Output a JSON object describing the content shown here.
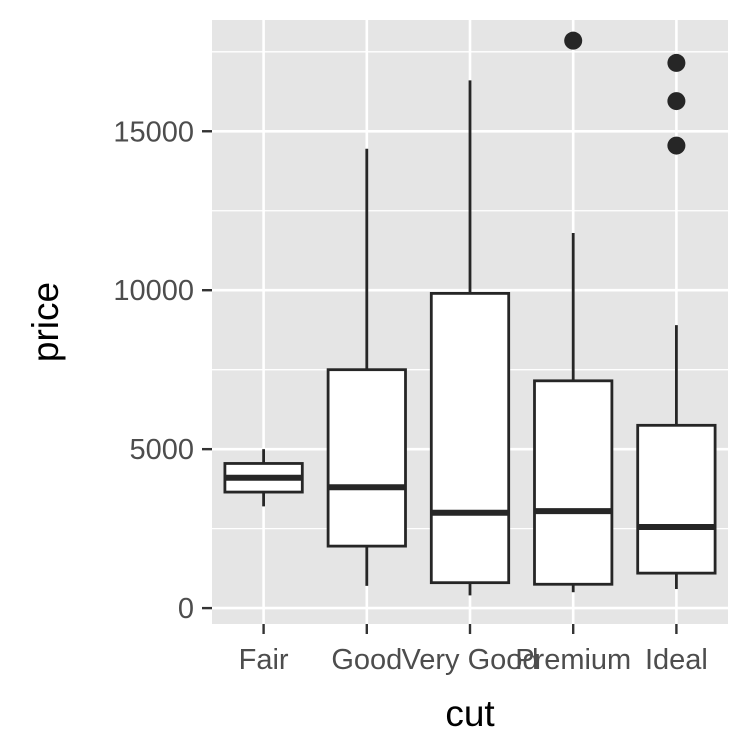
{
  "chart_data": {
    "type": "boxplot",
    "xlabel": "cut",
    "ylabel": "price",
    "ylim": [
      -500,
      18500
    ],
    "yticks": [
      0,
      5000,
      10000,
      15000
    ],
    "ytick_labels": [
      "0",
      "5000",
      "10000",
      "15000"
    ],
    "categories": [
      "Fair",
      "Good",
      "Very Good",
      "Premium",
      "Ideal"
    ],
    "boxes": [
      {
        "category": "Fair",
        "lower_whisker": 3200,
        "q1": 3650,
        "median": 4100,
        "q3": 4550,
        "upper_whisker": 5000,
        "outliers": []
      },
      {
        "category": "Good",
        "lower_whisker": 700,
        "q1": 1950,
        "median": 3800,
        "q3": 7500,
        "upper_whisker": 14450,
        "outliers": []
      },
      {
        "category": "Very Good",
        "lower_whisker": 400,
        "q1": 800,
        "median": 3000,
        "q3": 9900,
        "upper_whisker": 16600,
        "outliers": []
      },
      {
        "category": "Premium",
        "lower_whisker": 500,
        "q1": 750,
        "median": 3050,
        "q3": 7150,
        "upper_whisker": 11800,
        "outliers": [
          17850
        ]
      },
      {
        "category": "Ideal",
        "lower_whisker": 600,
        "q1": 1100,
        "median": 2550,
        "q3": 5750,
        "upper_whisker": 8900,
        "outliers": [
          14550,
          15950,
          17150
        ]
      }
    ],
    "grid": true,
    "colors": {
      "panel": "#e5e5e5",
      "grid": "#ffffff",
      "box_fill": "#ffffff",
      "box_stroke": "#262626",
      "tick_text": "#4d4d4d",
      "title_text": "#000000"
    }
  }
}
